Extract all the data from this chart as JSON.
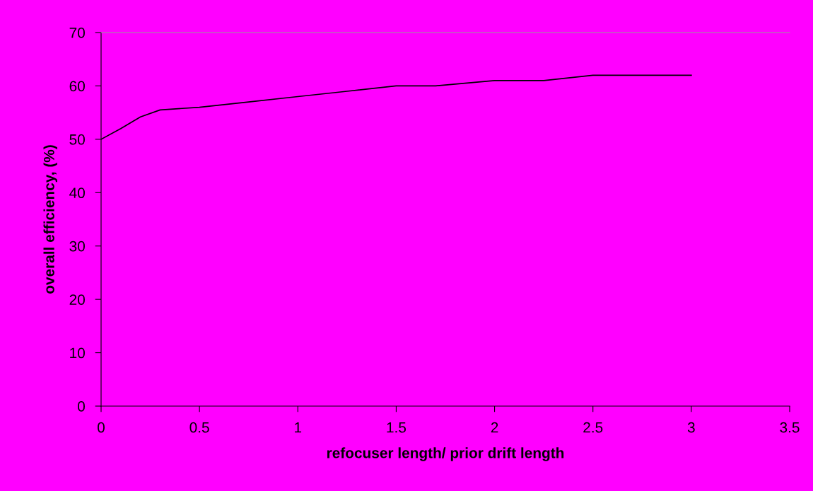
{
  "chart_data": {
    "type": "line",
    "xlabel": "refocuser length/ prior drift length",
    "ylabel": "overall efficiency, (%)",
    "x": [
      0,
      0.1,
      0.2,
      0.3,
      0.5,
      0.75,
      1,
      1.25,
      1.5,
      1.7,
      2,
      2.25,
      2.5,
      2.75,
      3
    ],
    "series": [
      {
        "color": "#000000",
        "values": [
          50,
          52,
          54.2,
          55.5,
          56,
          57,
          58,
          59,
          60,
          60,
          61,
          61,
          62,
          62,
          62
        ]
      }
    ],
    "xlim": [
      0,
      3.5
    ],
    "xticks": [
      0,
      0.5,
      1,
      1.5,
      2,
      2.5,
      3,
      3.5
    ],
    "ylim": [
      0,
      70
    ],
    "yticks": [
      0,
      10,
      20,
      30,
      40,
      50,
      60,
      70
    ],
    "grid": false,
    "legend": false,
    "marker": "none",
    "line_style": "solid"
  }
}
